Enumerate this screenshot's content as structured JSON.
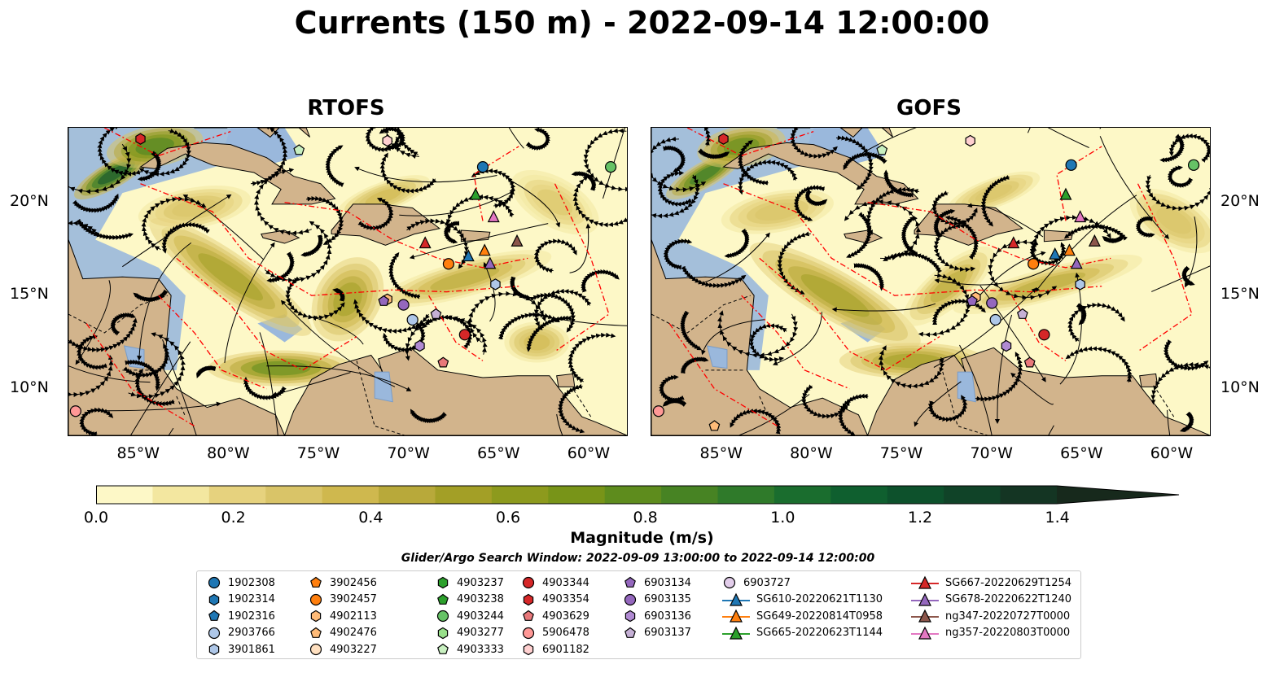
{
  "figure": {
    "title": "Currents (150 m) - 2022-09-14 12:00:00"
  },
  "panels": [
    {
      "title": "RTOFS"
    },
    {
      "title": "GOFS"
    }
  ],
  "axes": {
    "lon_ticks": [
      "85°W",
      "80°W",
      "75°W",
      "70°W",
      "65°W",
      "60°W"
    ],
    "lat_ticks": [
      "20°N",
      "15°N",
      "10°N"
    ],
    "extent": {
      "lon_min": -89,
      "lon_max": -58,
      "lat_min": 7.5,
      "lat_max": 24
    }
  },
  "colorbar": {
    "label": "Magnitude (m/s)",
    "ticks": [
      "0.0",
      "0.2",
      "0.4",
      "0.6",
      "0.8",
      "1.0",
      "1.2",
      "1.4"
    ],
    "range": [
      0,
      1.5
    ],
    "colors": [
      "#fdf8c7",
      "#f3e7a0",
      "#e6d27e",
      "#d9c468",
      "#cfb84e",
      "#b8a93a",
      "#a39f26",
      "#8d9a1d",
      "#789418",
      "#5e8c1d",
      "#478323",
      "#2f7a2a",
      "#1a6d2e",
      "#0f5f2f",
      "#0d512c",
      "#104328",
      "#143523",
      "#17291c"
    ]
  },
  "search_window": "Glider/Argo Search Window: 2022-09-09 13:00:00 to 2022-09-14 12:00:00",
  "legend": {
    "columns": [
      [
        {
          "label": "1902308",
          "marker": "circle",
          "color": "#1f77b4"
        },
        {
          "label": "1902314",
          "marker": "hexagon",
          "color": "#1f77b4"
        },
        {
          "label": "1902316",
          "marker": "pentagon",
          "color": "#1f77b4"
        },
        {
          "label": "2903766",
          "marker": "circle",
          "color": "#aec7e8"
        },
        {
          "label": "3901861",
          "marker": "hexagon",
          "color": "#aec7e8"
        }
      ],
      [
        {
          "label": "3902456",
          "marker": "pentagon",
          "color": "#ff7f0e"
        },
        {
          "label": "3902457",
          "marker": "circle",
          "color": "#ff7f0e"
        },
        {
          "label": "4902113",
          "marker": "hexagon",
          "color": "#ffbb78"
        },
        {
          "label": "4902476",
          "marker": "pentagon",
          "color": "#ffbb78"
        },
        {
          "label": "4903227",
          "marker": "circle",
          "color": "#ffe0c0"
        }
      ],
      [
        {
          "label": "4903237",
          "marker": "hexagon",
          "color": "#2ca02c"
        },
        {
          "label": "4903238",
          "marker": "pentagon",
          "color": "#2ca02c"
        },
        {
          "label": "4903244",
          "marker": "circle",
          "color": "#66c266"
        },
        {
          "label": "4903277",
          "marker": "hexagon",
          "color": "#98df8a"
        },
        {
          "label": "4903333",
          "marker": "pentagon",
          "color": "#c8f0c0"
        }
      ],
      [
        {
          "label": "4903344",
          "marker": "circle",
          "color": "#d62728"
        },
        {
          "label": "4903354",
          "marker": "hexagon",
          "color": "#d62728"
        },
        {
          "label": "4903629",
          "marker": "pentagon",
          "color": "#e8787a"
        },
        {
          "label": "5906478",
          "marker": "circle",
          "color": "#ff9896"
        },
        {
          "label": "6901182",
          "marker": "hexagon",
          "color": "#ffd0d0"
        }
      ],
      [
        {
          "label": "6903134",
          "marker": "pentagon",
          "color": "#9467bd"
        },
        {
          "label": "6903135",
          "marker": "circle",
          "color": "#9467bd"
        },
        {
          "label": "6903136",
          "marker": "hexagon",
          "color": "#b08ad2"
        },
        {
          "label": "6903137",
          "marker": "pentagon",
          "color": "#c5b0d5"
        }
      ],
      [
        {
          "label": "6903727",
          "marker": "circle",
          "color": "#e2cdea"
        },
        {
          "label": "SG610-20220621T1130",
          "marker": "triangle-line",
          "color": "#1f77b4"
        },
        {
          "label": "SG649-20220814T0958",
          "marker": "triangle-line",
          "color": "#ff7f0e"
        },
        {
          "label": "SG665-20220623T1144",
          "marker": "triangle-line",
          "color": "#2ca02c"
        }
      ],
      [
        {
          "label": "SG667-20220629T1254",
          "marker": "triangle-line",
          "color": "#d62728"
        },
        {
          "label": "SG678-20220622T1240",
          "marker": "triangle-line",
          "color": "#9467bd"
        },
        {
          "label": "ng347-20220727T0000",
          "marker": "triangle-line",
          "color": "#8c564b"
        },
        {
          "label": "ng357-20220803T0000",
          "marker": "triangle-line",
          "color": "#e377c2"
        }
      ]
    ]
  },
  "map_markers": {
    "rtofs": [
      {
        "label": "4903354",
        "lon": -85.0,
        "lat": 23.4
      },
      {
        "label": "6901182",
        "lon": -71.3,
        "lat": 23.3
      },
      {
        "label": "4903333",
        "lon": -76.2,
        "lat": 22.8
      },
      {
        "label": "1902308",
        "lon": -66.0,
        "lat": 21.9
      },
      {
        "label": "4903244",
        "lon": -58.9,
        "lat": 21.9
      },
      {
        "label": "SG665-20220623T1144",
        "lon": -66.4,
        "lat": 20.4
      },
      {
        "label": "ng357-20220803T0000",
        "lon": -65.4,
        "lat": 19.2
      },
      {
        "label": "SG667-20220629T1254",
        "lon": -69.2,
        "lat": 17.8
      },
      {
        "label": "ng347-20220727T0000",
        "lon": -64.1,
        "lat": 17.9
      },
      {
        "label": "SG610-20220621T1130",
        "lon": -66.8,
        "lat": 17.1
      },
      {
        "label": "SG649-20220814T0958",
        "lon": -65.9,
        "lat": 17.4
      },
      {
        "label": "3902457",
        "lon": -67.9,
        "lat": 16.7
      },
      {
        "label": "SG678-20220622T1240",
        "lon": -65.6,
        "lat": 16.7
      },
      {
        "label": "3901861",
        "lon": -65.3,
        "lat": 15.6
      },
      {
        "label": "4902113",
        "lon": -71.3,
        "lat": 14.8
      },
      {
        "label": "6903134",
        "lon": -71.5,
        "lat": 14.7
      },
      {
        "label": "6903135",
        "lon": -70.4,
        "lat": 14.5
      },
      {
        "label": "6903137",
        "lon": -68.6,
        "lat": 14.0
      },
      {
        "label": "2903766",
        "lon": -69.9,
        "lat": 13.7
      },
      {
        "label": "4903344",
        "lon": -67.0,
        "lat": 12.9
      },
      {
        "label": "6903136",
        "lon": -69.5,
        "lat": 12.3
      },
      {
        "label": "4903629",
        "lon": -68.2,
        "lat": 11.4
      },
      {
        "label": "5906478",
        "lon": -88.6,
        "lat": 8.8
      }
    ],
    "gofs": [
      {
        "label": "4903354",
        "lon": -85.0,
        "lat": 23.4
      },
      {
        "label": "6901182",
        "lon": -71.3,
        "lat": 23.3
      },
      {
        "label": "4903333",
        "lon": -76.2,
        "lat": 22.8
      },
      {
        "label": "1902308",
        "lon": -65.7,
        "lat": 22.0
      },
      {
        "label": "4903244",
        "lon": -58.9,
        "lat": 22.0
      },
      {
        "label": "SG665-20220623T1144",
        "lon": -66.0,
        "lat": 20.4
      },
      {
        "label": "ng357-20220803T0000",
        "lon": -65.2,
        "lat": 19.2
      },
      {
        "label": "SG667-20220629T1254",
        "lon": -68.9,
        "lat": 17.8
      },
      {
        "label": "ng347-20220727T0000",
        "lon": -64.4,
        "lat": 17.9
      },
      {
        "label": "SG610-20220621T1130",
        "lon": -66.6,
        "lat": 17.2
      },
      {
        "label": "SG649-20220814T0958",
        "lon": -65.8,
        "lat": 17.4
      },
      {
        "label": "3902457",
        "lon": -67.8,
        "lat": 16.7
      },
      {
        "label": "SG678-20220622T1240",
        "lon": -65.4,
        "lat": 16.7
      },
      {
        "label": "3901861",
        "lon": -65.2,
        "lat": 15.6
      },
      {
        "label": "4902113",
        "lon": -71.0,
        "lat": 14.9
      },
      {
        "label": "6903134",
        "lon": -71.2,
        "lat": 14.7
      },
      {
        "label": "6903135",
        "lon": -70.1,
        "lat": 14.6
      },
      {
        "label": "6903137",
        "lon": -68.4,
        "lat": 14.0
      },
      {
        "label": "2903766",
        "lon": -69.9,
        "lat": 13.7
      },
      {
        "label": "4903344",
        "lon": -67.2,
        "lat": 12.9
      },
      {
        "label": "6903136",
        "lon": -69.3,
        "lat": 12.3
      },
      {
        "label": "4903629",
        "lon": -68.0,
        "lat": 11.4
      },
      {
        "label": "5906478",
        "lon": -88.6,
        "lat": 8.8
      },
      {
        "label": "4902476",
        "lon": -85.5,
        "lat": 8.0
      }
    ]
  },
  "chart_data": {
    "type": "heatmap",
    "title": "Currents (150 m) - 2022-09-14 12:00:00",
    "subplots": [
      "RTOFS",
      "GOFS"
    ],
    "xlabel": "",
    "ylabel": "",
    "x_ticks": [
      "85°W",
      "80°W",
      "75°W",
      "70°W",
      "65°W",
      "60°W"
    ],
    "y_ticks": [
      "20°N",
      "15°N",
      "10°N"
    ],
    "colorbar_label": "Magnitude (m/s)",
    "colorbar_range": [
      0,
      1.5
    ]
  }
}
